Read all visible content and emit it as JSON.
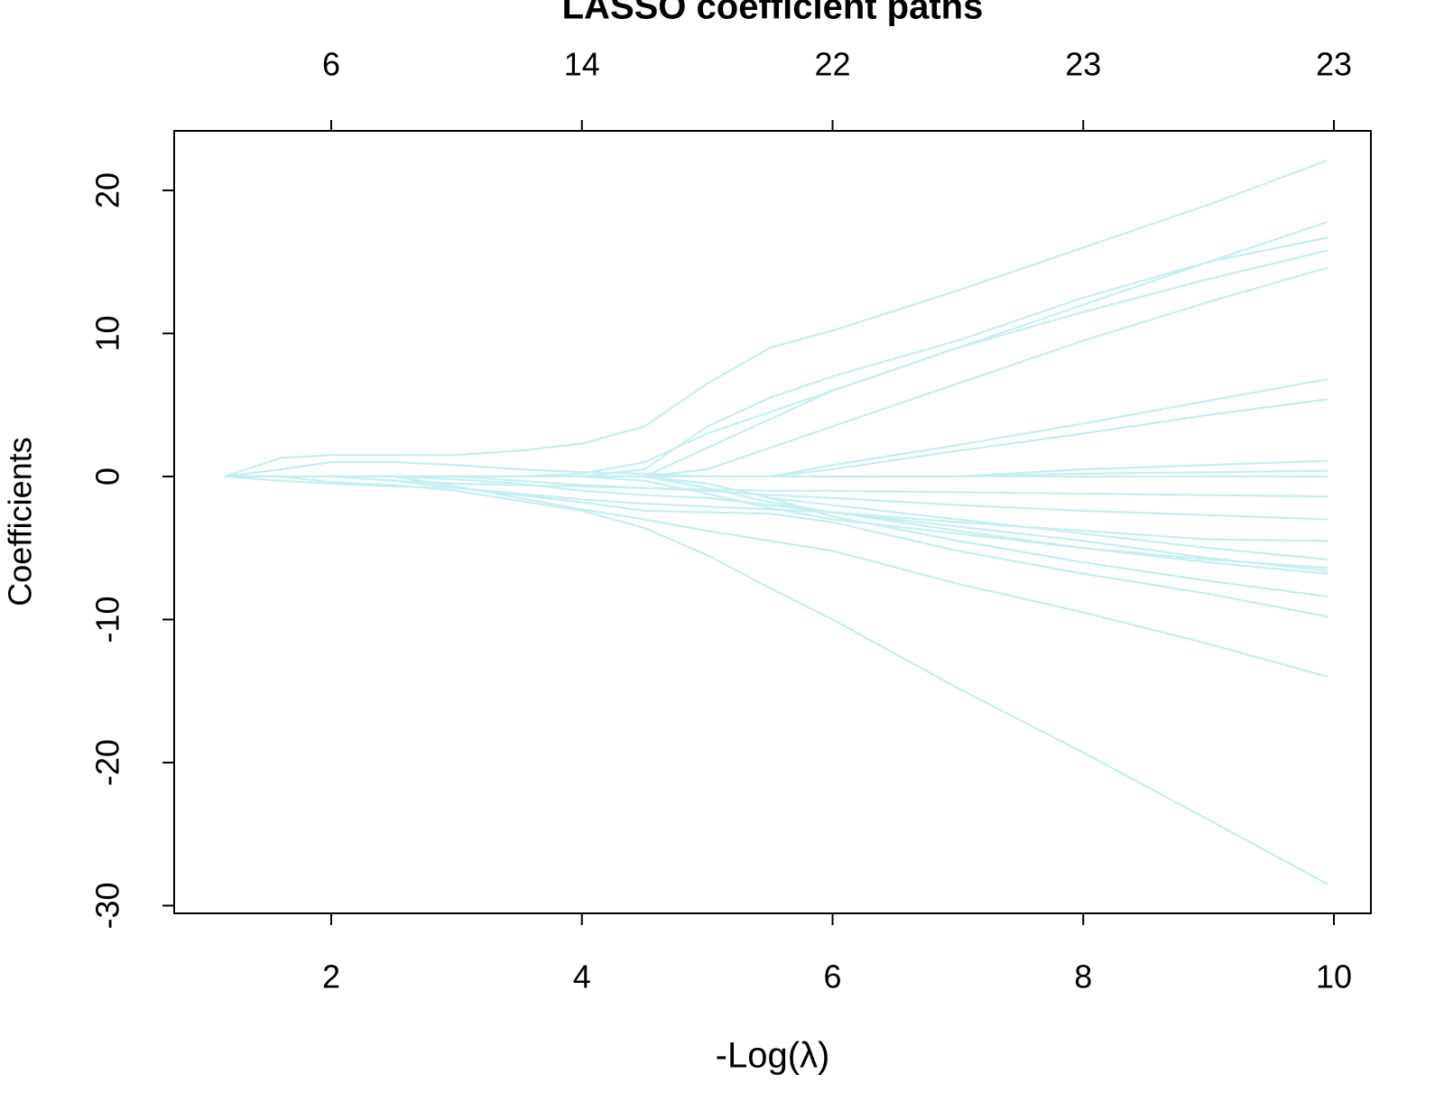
{
  "chart_data": {
    "type": "line",
    "title": "LASSO coefficient paths",
    "x_label": "-Log(λ)",
    "y_label": "Coefficients",
    "color": "#c6eef0",
    "x": [
      1.15,
      1.6,
      2,
      2.5,
      3,
      3.5,
      4,
      4.5,
      5,
      5.5,
      6,
      7,
      8,
      9,
      9.95
    ],
    "series": [
      {
        "values": [
          0,
          1.3,
          1.5,
          1.5,
          1.5,
          1.8,
          2.3,
          3.5,
          6.5,
          9,
          10.2,
          13,
          16,
          19,
          22.1
        ]
      },
      {
        "values": [
          0,
          0,
          0,
          0,
          0,
          0,
          0.2,
          1,
          3,
          4.5,
          6,
          9,
          12,
          15,
          17.8
        ]
      },
      {
        "values": [
          0,
          0,
          0,
          0,
          0,
          0,
          0,
          0.5,
          3.5,
          5.5,
          7,
          9.5,
          12.5,
          15,
          16.7
        ]
      },
      {
        "values": [
          0,
          0,
          0,
          0,
          0,
          0,
          0,
          0,
          2,
          4,
          6,
          9,
          11.5,
          13.8,
          15.8
        ]
      },
      {
        "values": [
          0,
          0,
          0,
          0,
          0,
          0,
          0,
          0,
          0.5,
          2,
          3.5,
          6.5,
          9.5,
          12.2,
          14.6
        ]
      },
      {
        "values": [
          0,
          0,
          0,
          0,
          0,
          0,
          0,
          0,
          0,
          0,
          0.8,
          2.2,
          3.7,
          5.3,
          6.8
        ]
      },
      {
        "values": [
          0,
          0,
          0,
          0,
          0,
          0,
          0,
          0,
          0,
          0,
          0.5,
          1.8,
          3,
          4.3,
          5.4
        ]
      },
      {
        "values": [
          0,
          0.5,
          1,
          1,
          0.8,
          0.5,
          0.3,
          0.2,
          0,
          0,
          0,
          0,
          0.5,
          0.8,
          1.1
        ]
      },
      {
        "values": [
          0,
          0,
          0,
          0,
          0,
          0,
          0,
          0,
          0,
          0,
          0,
          0,
          0.2,
          0.3,
          0.4
        ]
      },
      {
        "values": [
          0,
          0,
          0,
          -0.3,
          -0.5,
          -0.6,
          -0.7,
          -0.8,
          -0.9,
          -1,
          -1,
          -1.1,
          -1.2,
          -1.3,
          -1.4
        ]
      },
      {
        "values": [
          0,
          0,
          0,
          0,
          0,
          -0.3,
          -0.6,
          -0.8,
          -1,
          -1.3,
          -1.5,
          -2,
          -2.4,
          -2.7,
          -3
        ]
      },
      {
        "values": [
          0,
          -0.3,
          -0.5,
          -0.7,
          -0.8,
          -1.2,
          -1.6,
          -1.9,
          -2.1,
          -2.3,
          -2.5,
          -3.2,
          -3.8,
          -4.4,
          -4.5
        ]
      },
      {
        "values": [
          0,
          0,
          0,
          0,
          0,
          0,
          0,
          0,
          -0.5,
          -1.5,
          -2,
          -3,
          -4,
          -5,
          -5.8
        ]
      },
      {
        "values": [
          0,
          0,
          0,
          0,
          0,
          0,
          0,
          0,
          -0.8,
          -1.8,
          -2.5,
          -3.8,
          -5,
          -5.8,
          -6.4
        ]
      },
      {
        "values": [
          0,
          0,
          0,
          0,
          0,
          0,
          0,
          -0.3,
          -1.2,
          -2.2,
          -3,
          -4,
          -5,
          -6,
          -6.8
        ]
      },
      {
        "values": [
          0,
          0,
          0,
          0,
          -0.2,
          -0.5,
          -1,
          -1.3,
          -1.5,
          -2,
          -2.5,
          -3.5,
          -4.5,
          -5.7,
          -6.6
        ]
      },
      {
        "values": [
          0,
          0,
          0,
          0,
          0,
          0,
          0,
          0,
          -0.5,
          -1.5,
          -2.8,
          -4.5,
          -6,
          -7.3,
          -8.4
        ]
      },
      {
        "values": [
          0,
          0,
          0,
          -0.3,
          -0.8,
          -1.3,
          -1.8,
          -2.4,
          -2.5,
          -2.6,
          -3.2,
          -5.2,
          -6.8,
          -8.2,
          -9.8
        ]
      },
      {
        "values": [
          0,
          0,
          0,
          0,
          -0.7,
          -1.5,
          -2.3,
          -3,
          -3.8,
          -4.5,
          -5.2,
          -7.5,
          -9.5,
          -11.7,
          -14
        ]
      },
      {
        "values": [
          0,
          0,
          -0.4,
          -0.6,
          -1,
          -1.7,
          -2.4,
          -3.6,
          -5.5,
          -7.8,
          -10,
          -14.8,
          -19.3,
          -24,
          -28.5
        ]
      },
      {
        "values": [
          0,
          0,
          0,
          0,
          0,
          0,
          0,
          0,
          0,
          0,
          0,
          0,
          0,
          0,
          0
        ]
      }
    ],
    "xlim": [
      0.747,
      10.295
    ],
    "ylim": [
      -30.54,
      24.16
    ],
    "xticks": [
      2,
      4,
      6,
      8,
      10
    ],
    "yticks": [
      -30,
      -20,
      -10,
      0,
      10,
      20
    ],
    "top_ticks": [
      {
        "value": 2,
        "label": "6"
      },
      {
        "value": 4,
        "label": "14"
      },
      {
        "value": 6,
        "label": "22"
      },
      {
        "value": 8,
        "label": "23"
      },
      {
        "value": 10,
        "label": "23"
      }
    ]
  }
}
